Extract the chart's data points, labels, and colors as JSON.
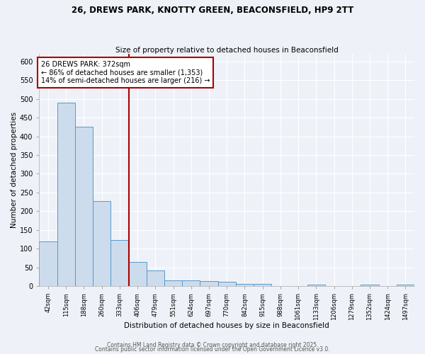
{
  "title1": "26, DREWS PARK, KNOTTY GREEN, BEACONSFIELD, HP9 2TT",
  "title2": "Size of property relative to detached houses in Beaconsfield",
  "xlabel": "Distribution of detached houses by size in Beaconsfield",
  "ylabel": "Number of detached properties",
  "bar_labels": [
    "42sqm",
    "115sqm",
    "188sqm",
    "260sqm",
    "333sqm",
    "406sqm",
    "479sqm",
    "551sqm",
    "624sqm",
    "697sqm",
    "770sqm",
    "842sqm",
    "915sqm",
    "988sqm",
    "1061sqm",
    "1133sqm",
    "1206sqm",
    "1279sqm",
    "1352sqm",
    "1424sqm",
    "1497sqm"
  ],
  "bar_heights": [
    120,
    490,
    425,
    228,
    123,
    65,
    42,
    15,
    15,
    14,
    11,
    6,
    5,
    1,
    1,
    4,
    1,
    1,
    3,
    1,
    3
  ],
  "bar_color": "#ccdcec",
  "bar_edge_color": "#5599cc",
  "vline_x": 4.5,
  "vline_color": "#aa0000",
  "annotation_text": "26 DREWS PARK: 372sqm\n← 86% of detached houses are smaller (1,353)\n14% of semi-detached houses are larger (216) →",
  "annotation_box_color": "#ffffff",
  "annotation_edge_color": "#aa0000",
  "ylim": [
    0,
    620
  ],
  "yticks": [
    0,
    50,
    100,
    150,
    200,
    250,
    300,
    350,
    400,
    450,
    500,
    550,
    600
  ],
  "footer1": "Contains HM Land Registry data © Crown copyright and database right 2025.",
  "footer2": "Contains public sector information licensed under the Open Government Licence v3.0.",
  "bg_color": "#eef2f8",
  "grid_color": "#ffffff"
}
